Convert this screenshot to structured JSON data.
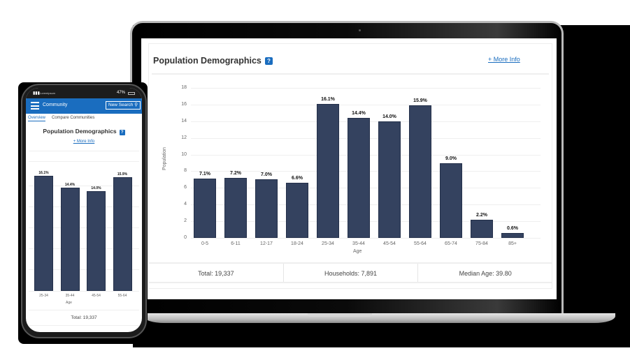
{
  "laptop": {
    "card_title": "Population Demographics",
    "help_icon": "?",
    "more_info_link": "+ More Info",
    "stats": [
      {
        "label": "Total: 19,337"
      },
      {
        "label": "Households: 7,891"
      },
      {
        "label": "Median Age: 39.80"
      }
    ]
  },
  "phone": {
    "status_bar": {
      "carrier": "Loremipsum",
      "battery": "47%"
    },
    "app_title": "Community",
    "new_search_label": "New Search",
    "tabs": [
      {
        "label": "Overview",
        "active": true
      },
      {
        "label": "Compare Communities",
        "active": false
      }
    ],
    "card_title": "Population Demographics",
    "help_icon": "?",
    "more_info_link": "+ More Info",
    "chart_xlabel": "Age",
    "visible_categories": [
      "25-34",
      "35-44",
      "45-54",
      "55-64"
    ],
    "visible_labels": [
      "16.1%",
      "14.4%",
      "14.0%",
      "15.9%"
    ],
    "visible_values": [
      16.1,
      14.4,
      14.0,
      15.9
    ],
    "total": "Total: 19,337"
  },
  "chart_data": {
    "type": "bar",
    "title": "Population Demographics",
    "xlabel": "Age",
    "ylabel": "Population",
    "ylim": [
      0,
      18
    ],
    "yticks": [
      0,
      2,
      4,
      6,
      8,
      10,
      12,
      14,
      16,
      18
    ],
    "grid": true,
    "legend": "none",
    "categories": [
      "0-5",
      "6-11",
      "12-17",
      "18-24",
      "25-34",
      "35-44",
      "45-54",
      "55-64",
      "65-74",
      "75-84",
      "85+"
    ],
    "values": [
      7.1,
      7.2,
      7.0,
      6.6,
      16.1,
      14.4,
      14.0,
      15.9,
      9.0,
      2.2,
      0.6
    ],
    "data_labels": [
      "7.1%",
      "7.2%",
      "7.0%",
      "6.6%",
      "16.1%",
      "14.4%",
      "14.0%",
      "15.9%",
      "9.0%",
      "2.2%",
      "0.6%"
    ],
    "bar_color": "#34425f"
  }
}
